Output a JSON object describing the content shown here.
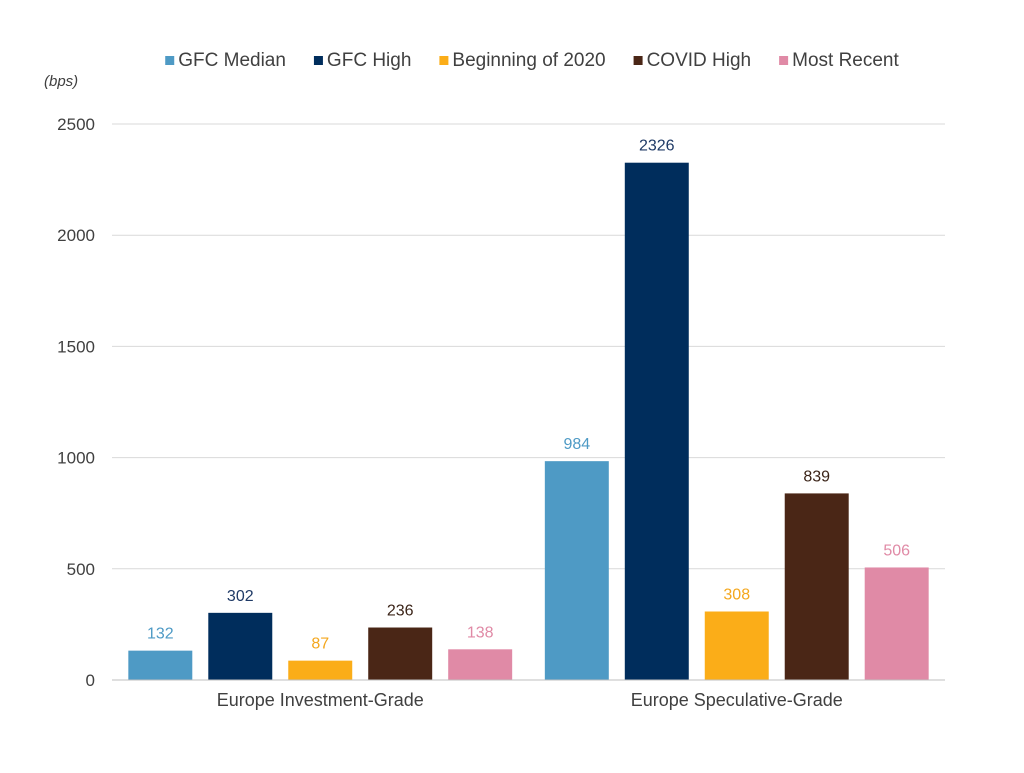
{
  "chart_data": {
    "type": "bar",
    "unit_label": "(bps)",
    "categories": [
      "Europe Investment-Grade",
      "Europe Speculative-Grade"
    ],
    "series": [
      {
        "name": "GFC Median",
        "color": "#4e9ac5",
        "label_color": "#4e9ac5",
        "values": [
          132,
          984
        ]
      },
      {
        "name": "GFC High",
        "color": "#002d5c",
        "label_color": "#1f3a66",
        "values": [
          302,
          2326
        ]
      },
      {
        "name": "Beginning of 2020",
        "color": "#fbad18",
        "label_color": "#f4a71d",
        "values": [
          87,
          308
        ]
      },
      {
        "name": "COVID High",
        "color": "#4a2616",
        "label_color": "#3b2418",
        "values": [
          236,
          839
        ]
      },
      {
        "name": "Most Recent",
        "color": "#e08aa6",
        "label_color": "#e08aa6",
        "values": [
          138,
          506
        ]
      }
    ],
    "ylim": [
      0,
      2500
    ],
    "yticks": [
      0,
      500,
      1000,
      1500,
      2000,
      2500
    ],
    "grid": true,
    "legend_position": "top"
  }
}
